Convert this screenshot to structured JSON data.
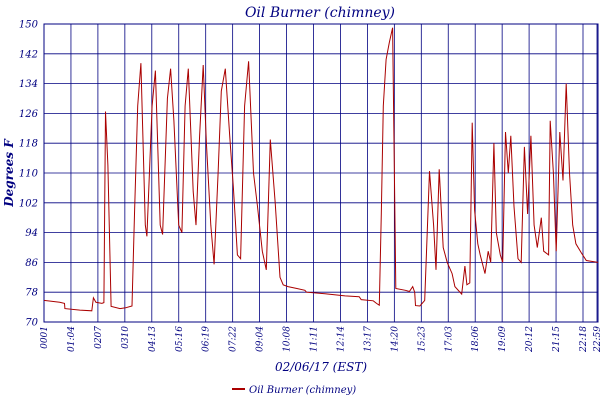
{
  "chart_data": {
    "type": "line",
    "title": "Oil Burner (chimney)",
    "xlabel": "02/06/17 (EST)",
    "ylabel": "Degrees F",
    "ylim": [
      70,
      150
    ],
    "yticks": [
      70,
      78,
      86,
      94,
      102,
      110,
      118,
      126,
      134,
      142,
      150
    ],
    "xlim": [
      "00:01",
      "22:59"
    ],
    "xtick_labels": [
      "0001",
      "01:04",
      "0207",
      "0310",
      "04:13",
      "05:16",
      "06:19",
      "07:22",
      "09:04",
      "10:08",
      "11:11",
      "12:14",
      "13:17",
      "14:20",
      "15:23",
      "17:03",
      "18:06",
      "19:09",
      "20:12",
      "21:15",
      "22:18",
      "22:59"
    ],
    "grid": true,
    "legend_position": "bottom-center",
    "colors": {
      "series": "#aa0000",
      "grid": "#000080",
      "text": "#000080"
    },
    "series": [
      {
        "name": "Oil Burner (chimney)",
        "points": [
          [
            "00:01",
            75.8
          ],
          [
            "00:40",
            75.3
          ],
          [
            "00:52",
            75.0
          ],
          [
            "00:53",
            73.6
          ],
          [
            "01:30",
            73.2
          ],
          [
            "02:00",
            73.0
          ],
          [
            "02:04",
            76.5
          ],
          [
            "02:10",
            75.3
          ],
          [
            "02:25",
            75.0
          ],
          [
            "02:30",
            75.2
          ],
          [
            "02:34",
            126.5
          ],
          [
            "02:40",
            112
          ],
          [
            "02:48",
            74.2
          ],
          [
            "03:10",
            73.6
          ],
          [
            "03:24",
            73.8
          ],
          [
            "03:40",
            74.3
          ],
          [
            "03:46",
            99
          ],
          [
            "03:54",
            128
          ],
          [
            "04:02",
            139.5
          ],
          [
            "04:13",
            96
          ],
          [
            "04:17",
            93
          ],
          [
            "04:30",
            128
          ],
          [
            "04:38",
            137.5
          ],
          [
            "04:50",
            96
          ],
          [
            "04:56",
            93.5
          ],
          [
            "05:08",
            130
          ],
          [
            "05:16",
            138
          ],
          [
            "05:24",
            124
          ],
          [
            "05:36",
            96
          ],
          [
            "05:44",
            94
          ],
          [
            "05:52",
            128
          ],
          [
            "06:00",
            138
          ],
          [
            "06:12",
            105
          ],
          [
            "06:19",
            96
          ],
          [
            "06:28",
            120
          ],
          [
            "06:37",
            139
          ],
          [
            "06:45",
            118
          ],
          [
            "06:56",
            96
          ],
          [
            "07:04",
            85.5
          ],
          [
            "07:14",
            110
          ],
          [
            "07:22",
            132
          ],
          [
            "07:32",
            138
          ],
          [
            "07:43",
            120
          ],
          [
            "07:52",
            106
          ],
          [
            "08:02",
            88
          ],
          [
            "08:10",
            87
          ],
          [
            "08:20",
            128
          ],
          [
            "08:30",
            140
          ],
          [
            "08:42",
            110
          ],
          [
            "08:52",
            101
          ],
          [
            "09:04",
            89
          ],
          [
            "09:14",
            84
          ],
          [
            "09:24",
            119
          ],
          [
            "09:36",
            102
          ],
          [
            "09:48",
            82
          ],
          [
            "09:56",
            80
          ],
          [
            "10:08",
            79.5
          ],
          [
            "10:30",
            79.0
          ],
          [
            "10:50",
            78.5
          ],
          [
            "10:54",
            78
          ],
          [
            "11:40",
            77.6
          ],
          [
            "12:30",
            77.0
          ],
          [
            "13:05",
            76.8
          ],
          [
            "13:10",
            76.0
          ],
          [
            "13:40",
            75.7
          ],
          [
            "13:48",
            75.0
          ],
          [
            "13:55",
            74.5
          ],
          [
            "14:00",
            99
          ],
          [
            "14:05",
            128
          ],
          [
            "14:12",
            140.5
          ],
          [
            "14:20",
            145
          ],
          [
            "14:28",
            149
          ],
          [
            "14:36",
            79
          ],
          [
            "15:00",
            78.5
          ],
          [
            "15:10",
            78.2
          ],
          [
            "15:18",
            79.5
          ],
          [
            "15:23",
            78.0
          ],
          [
            "15:25",
            74.4
          ],
          [
            "15:36",
            74.3
          ],
          [
            "15:48",
            75.8
          ],
          [
            "16:00",
            110.5
          ],
          [
            "16:10",
            96
          ],
          [
            "16:16",
            84
          ],
          [
            "16:24",
            111
          ],
          [
            "16:34",
            90
          ],
          [
            "16:44",
            86
          ],
          [
            "16:56",
            83
          ],
          [
            "17:03",
            79.5
          ],
          [
            "17:20",
            77.5
          ],
          [
            "17:28",
            85
          ],
          [
            "17:33",
            80
          ],
          [
            "17:40",
            80.5
          ],
          [
            "17:46",
            123.5
          ],
          [
            "17:52",
            100
          ],
          [
            "18:00",
            91
          ],
          [
            "18:06",
            88
          ],
          [
            "18:18",
            83
          ],
          [
            "18:26",
            89
          ],
          [
            "18:32",
            86
          ],
          [
            "18:40",
            118
          ],
          [
            "18:46",
            94
          ],
          [
            "18:56",
            88
          ],
          [
            "19:02",
            86
          ],
          [
            "19:09",
            121
          ],
          [
            "19:16",
            110
          ],
          [
            "19:22",
            120
          ],
          [
            "19:30",
            101
          ],
          [
            "19:40",
            87
          ],
          [
            "19:48",
            86
          ],
          [
            "19:56",
            117
          ],
          [
            "20:04",
            99
          ],
          [
            "20:12",
            120
          ],
          [
            "20:20",
            96
          ],
          [
            "20:28",
            90
          ],
          [
            "20:38",
            98
          ],
          [
            "20:44",
            89
          ],
          [
            "20:56",
            88
          ],
          [
            "21:00",
            124
          ],
          [
            "21:08",
            110
          ],
          [
            "21:15",
            89
          ],
          [
            "21:24",
            121
          ],
          [
            "21:32",
            108
          ],
          [
            "21:40",
            134
          ],
          [
            "21:48",
            110
          ],
          [
            "21:56",
            96
          ],
          [
            "22:04",
            91
          ],
          [
            "22:18",
            88.5
          ],
          [
            "22:30",
            86.5
          ],
          [
            "22:59",
            86
          ]
        ]
      }
    ]
  }
}
